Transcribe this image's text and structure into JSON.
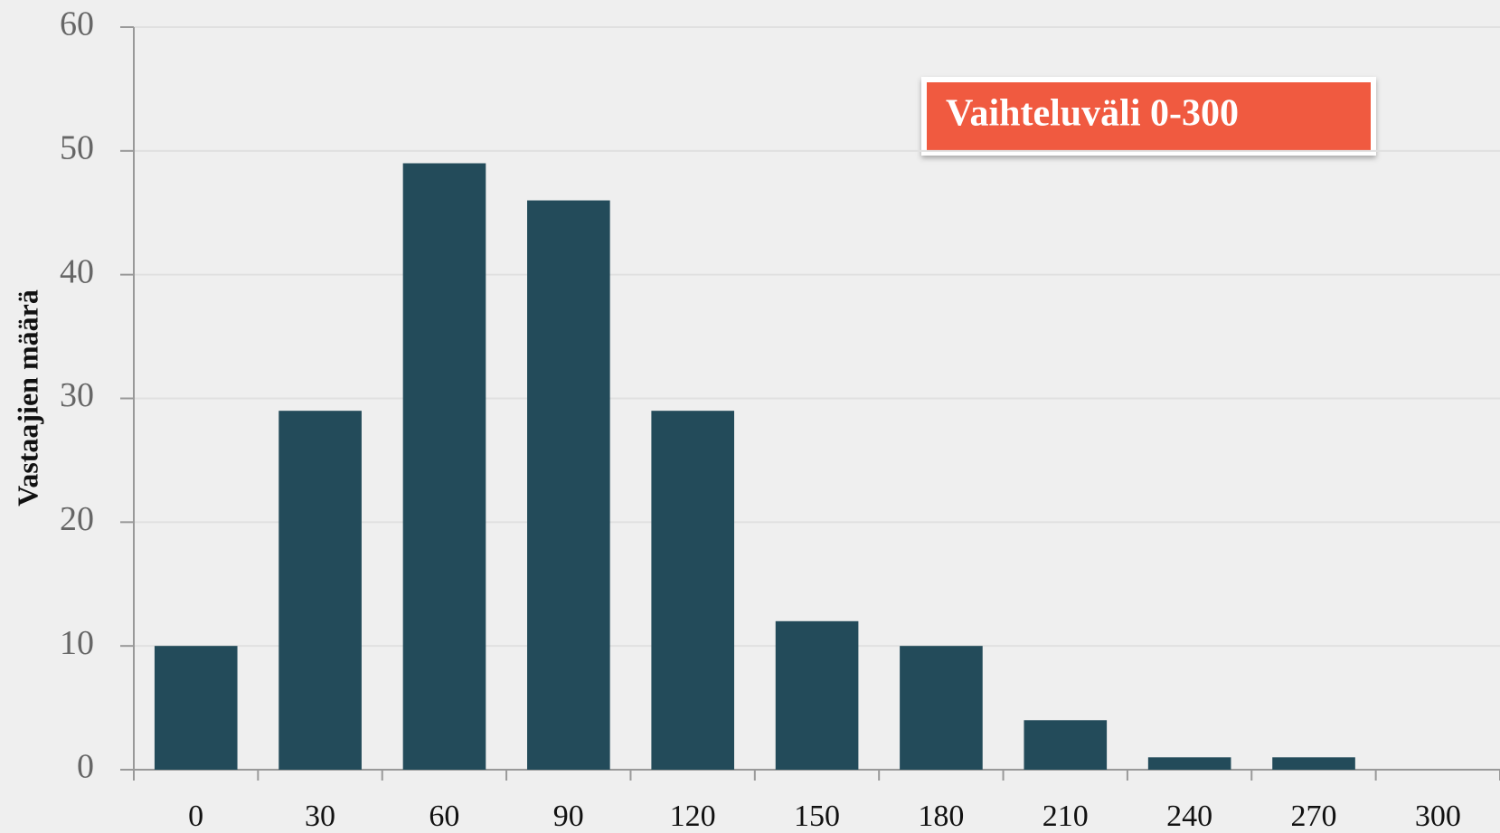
{
  "chart_data": {
    "type": "bar",
    "y_label": "Vastaajien määrä",
    "annotation": "Vaihteluväli 0-300",
    "categories": [
      "0",
      "30",
      "60",
      "90",
      "120",
      "150",
      "180",
      "210",
      "240",
      "270",
      "300"
    ],
    "values": [
      10,
      29,
      49,
      46,
      29,
      12,
      10,
      4,
      1,
      1,
      0
    ],
    "color": "#234b5a",
    "ylim": [
      0,
      60
    ],
    "yticks": [
      0,
      10,
      20,
      30,
      40,
      50,
      60
    ],
    "grid": true
  }
}
